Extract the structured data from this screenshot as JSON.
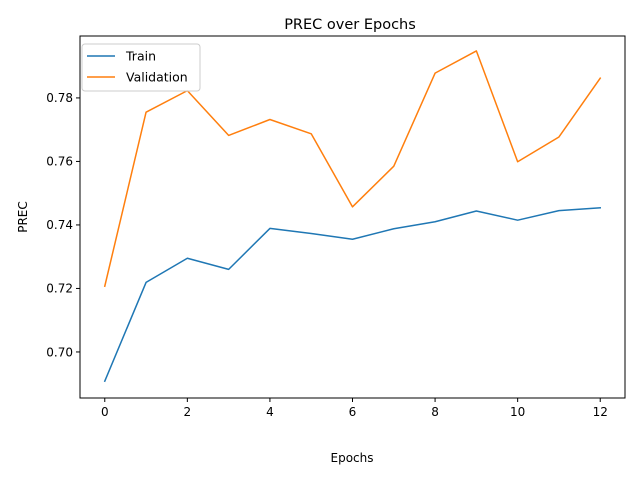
{
  "chart_data": {
    "type": "line",
    "title": "PREC over Epochs",
    "xlabel": "Epochs",
    "ylabel": "PREC",
    "x": [
      0,
      1,
      2,
      3,
      4,
      5,
      6,
      7,
      8,
      9,
      10,
      11,
      12
    ],
    "xlim": [
      -0.6,
      12.6
    ],
    "ylim": [
      0.6855,
      0.7995
    ],
    "xticks": [
      0,
      2,
      4,
      6,
      8,
      10,
      12
    ],
    "xtick_labels": [
      "0",
      "2",
      "4",
      "6",
      "8",
      "10",
      "12"
    ],
    "yticks": [
      0.7,
      0.72,
      0.74,
      0.76,
      0.78
    ],
    "ytick_labels": [
      "0.70",
      "0.72",
      "0.74",
      "0.76",
      "0.78"
    ],
    "grid": false,
    "legend_position": "top-left",
    "series": [
      {
        "name": "Train",
        "color": "#1f77b4",
        "values": [
          0.6908,
          0.7219,
          0.7295,
          0.726,
          0.7389,
          0.7373,
          0.7355,
          0.7388,
          0.741,
          0.7444,
          0.7415,
          0.7445,
          0.7454
        ]
      },
      {
        "name": "Validation",
        "color": "#ff7f0e",
        "values": [
          0.7207,
          0.7755,
          0.7823,
          0.7682,
          0.7732,
          0.7687,
          0.7457,
          0.7585,
          0.7878,
          0.7948,
          0.7599,
          0.7677,
          0.7862
        ]
      }
    ]
  }
}
